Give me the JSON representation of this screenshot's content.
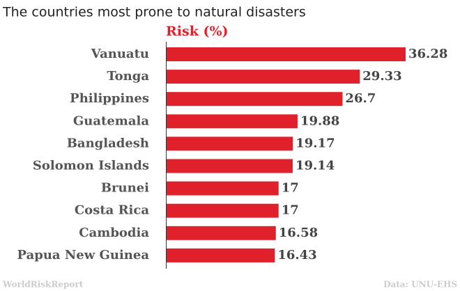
{
  "chart_data": {
    "type": "hbar",
    "title": "The countries most prone to natural disasters",
    "axis_label": "Risk (%)",
    "categories": [
      "Vanuatu",
      "Tonga",
      "Philippines",
      "Guatemala",
      "Bangladesh",
      "Solomon Islands",
      "Brunei",
      "Costa Rica",
      "Cambodia",
      "Papua New Guinea"
    ],
    "values": [
      36.28,
      29.33,
      26.7,
      19.88,
      19.17,
      19.14,
      17,
      17,
      16.58,
      16.43
    ],
    "color": "#e0202a",
    "source_left": "WorldRiskReport",
    "source_right": "Data: UNU-EHS"
  }
}
